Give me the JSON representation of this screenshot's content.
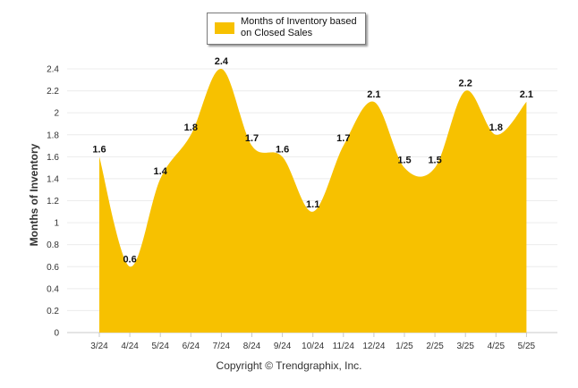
{
  "chart_data": {
    "type": "area",
    "categories": [
      "3/24",
      "4/24",
      "5/24",
      "6/24",
      "7/24",
      "8/24",
      "9/24",
      "10/24",
      "11/24",
      "12/24",
      "1/25",
      "2/25",
      "3/25",
      "4/25",
      "5/25"
    ],
    "series": [
      {
        "name": "Months of Inventory based on Closed Sales",
        "values": [
          1.6,
          0.6,
          1.4,
          1.8,
          2.4,
          1.7,
          1.6,
          1.1,
          1.7,
          2.1,
          1.5,
          1.5,
          2.2,
          1.8,
          2.1
        ]
      }
    ],
    "ylabel": "Months of Inventory",
    "ylim": [
      0,
      2.4
    ],
    "yticks": [
      "0",
      "0.2",
      "0.4",
      "0.6",
      "0.8",
      "1",
      "1.2",
      "1.4",
      "1.6",
      "1.8",
      "2",
      "2.2",
      "2.4"
    ],
    "grid": true,
    "legend": "top-center",
    "color": "#f7c100"
  },
  "legend": {
    "label": "Months of Inventory based on Closed Sales"
  },
  "footer": {
    "copyright": "Copyright © Trendgraphix, Inc."
  }
}
